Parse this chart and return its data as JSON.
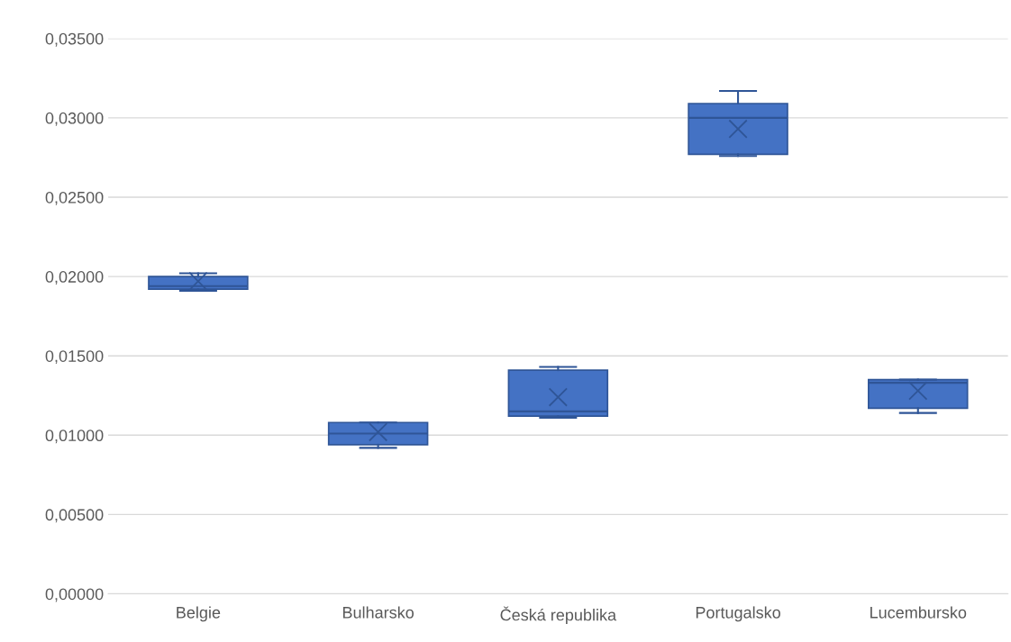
{
  "chart_data": {
    "type": "box",
    "categories": [
      "Belgie",
      "Bulharsko",
      "Česká republika",
      "Portugalsko",
      "Lucembursko"
    ],
    "boxes": [
      {
        "low": 0.0191,
        "q1": 0.0192,
        "median": 0.0194,
        "q3": 0.02,
        "high": 0.0202,
        "mean": 0.0197
      },
      {
        "low": 0.0092,
        "q1": 0.0094,
        "median": 0.0101,
        "q3": 0.0108,
        "high": 0.0108,
        "mean": 0.0102
      },
      {
        "low": 0.0111,
        "q1": 0.0112,
        "median": 0.0115,
        "q3": 0.0141,
        "high": 0.0143,
        "mean": 0.0124
      },
      {
        "low": 0.0276,
        "q1": 0.0277,
        "median": 0.03,
        "q3": 0.0309,
        "high": 0.0317,
        "mean": 0.0293
      },
      {
        "low": 0.0114,
        "q1": 0.0117,
        "median": 0.0133,
        "q3": 0.0135,
        "high": 0.0135,
        "mean": 0.0128
      }
    ],
    "color": "#4472c4",
    "ylim": [
      0,
      0.035
    ],
    "yticks": [
      {
        "value": 0,
        "label": "0,00000"
      },
      {
        "value": 0.005,
        "label": "0,00500"
      },
      {
        "value": 0.01,
        "label": "0,01000"
      },
      {
        "value": 0.015,
        "label": "0,01500"
      },
      {
        "value": 0.02,
        "label": "0,02000"
      },
      {
        "value": 0.025,
        "label": "0,02500"
      },
      {
        "value": 0.03,
        "label": "0,03000"
      },
      {
        "value": 0.035,
        "label": "0,03500"
      }
    ],
    "grid": "y",
    "legend": false,
    "marker": "cross"
  }
}
